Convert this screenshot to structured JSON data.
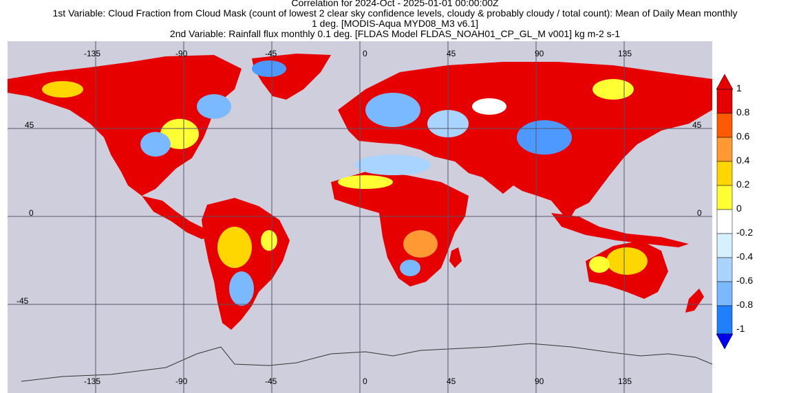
{
  "title": {
    "line1": "Correlation for 2024-Oct - 2025-01-01 00:00:00Z",
    "line2": "1st Variable: Cloud Fraction from Cloud Mask (count of lowest 2 clear sky confidence levels, cloudy & probably cloudy / total count): Mean of Daily Mean monthly",
    "line3": "1 deg. [MODIS-Aqua MYD08_M3 v6.1]",
    "line4": "2nd Variable: Rainfall flux monthly 0.1 deg. [FLDAS Model FLDAS_NOAH01_CP_GL_M v001] kg m-2 s-1"
  },
  "map": {
    "lon_ticks_top": [
      "-135",
      "-90",
      "-45",
      "0",
      "45",
      "90",
      "135"
    ],
    "lon_ticks_bottom": [
      "-135",
      "-90",
      "-45",
      "0",
      "45",
      "90",
      "135"
    ],
    "lat_ticks_left": [
      "45",
      "0",
      "-45"
    ],
    "lat_ticks_right": [
      "45",
      "0"
    ],
    "background_color": "#cecedd",
    "grid_color": "#555566"
  },
  "colorbar": {
    "labels": [
      "1",
      "0.8",
      "0.6",
      "0.4",
      "0.2",
      "0",
      "-0.2",
      "-0.4",
      "-0.6",
      "-0.8",
      "-1"
    ],
    "colors": [
      "#e60000",
      "#ff5a00",
      "#ff9933",
      "#ffd700",
      "#ffff33",
      "#ffffff",
      "#d6f0ff",
      "#a8d4ff",
      "#7ab8ff",
      "#4d99ff",
      "#1f7fff"
    ],
    "top_arrow_color": "#e60000",
    "bottom_arrow_color": "#0000ee"
  }
}
